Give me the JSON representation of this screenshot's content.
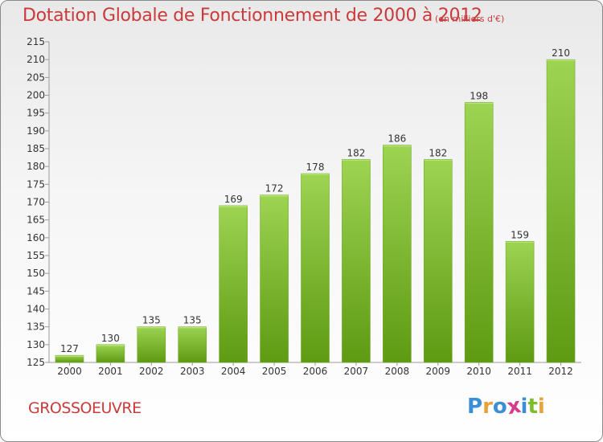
{
  "chart_data": {
    "type": "bar",
    "title": "Dotation Globale de Fonctionnement de 2000 à 2012",
    "unit_note": "(en milliers d'€)",
    "categories": [
      "2000",
      "2001",
      "2002",
      "2003",
      "2004",
      "2005",
      "2006",
      "2007",
      "2008",
      "2009",
      "2010",
      "2011",
      "2012"
    ],
    "values": [
      127,
      130,
      135,
      135,
      169,
      172,
      178,
      182,
      186,
      182,
      198,
      159,
      210
    ],
    "data_labels": [
      "127",
      "130",
      "135",
      "135",
      "169",
      "172",
      "178",
      "182",
      "186",
      "182",
      "198",
      "159",
      "210"
    ],
    "xlabel": "",
    "ylabel": "",
    "ylim": [
      125,
      215
    ],
    "yticks": [
      "125",
      "130",
      "135",
      "140",
      "145",
      "150",
      "155",
      "160",
      "165",
      "170",
      "175",
      "180",
      "185",
      "190",
      "195",
      "200",
      "205",
      "210",
      "215"
    ],
    "grid": false,
    "bar_color": "#7cbd2e",
    "bar_color_light": "#9dd452",
    "bar_color_dark": "#5e9a12"
  },
  "place_name": "GROSSOEUVRE",
  "logo": {
    "letters": [
      {
        "ch": "P",
        "color": "#3a8fd6"
      },
      {
        "ch": "r",
        "color": "#e8a23a"
      },
      {
        "ch": "o",
        "color": "#3a8fd6"
      },
      {
        "ch": "x",
        "color": "#d63a8a"
      },
      {
        "ch": "i",
        "color": "#3a8fd6"
      },
      {
        "ch": "t",
        "color": "#7cbd2e"
      },
      {
        "ch": "i",
        "color": "#e8a23a"
      }
    ]
  },
  "text_color": "#c93a3a"
}
